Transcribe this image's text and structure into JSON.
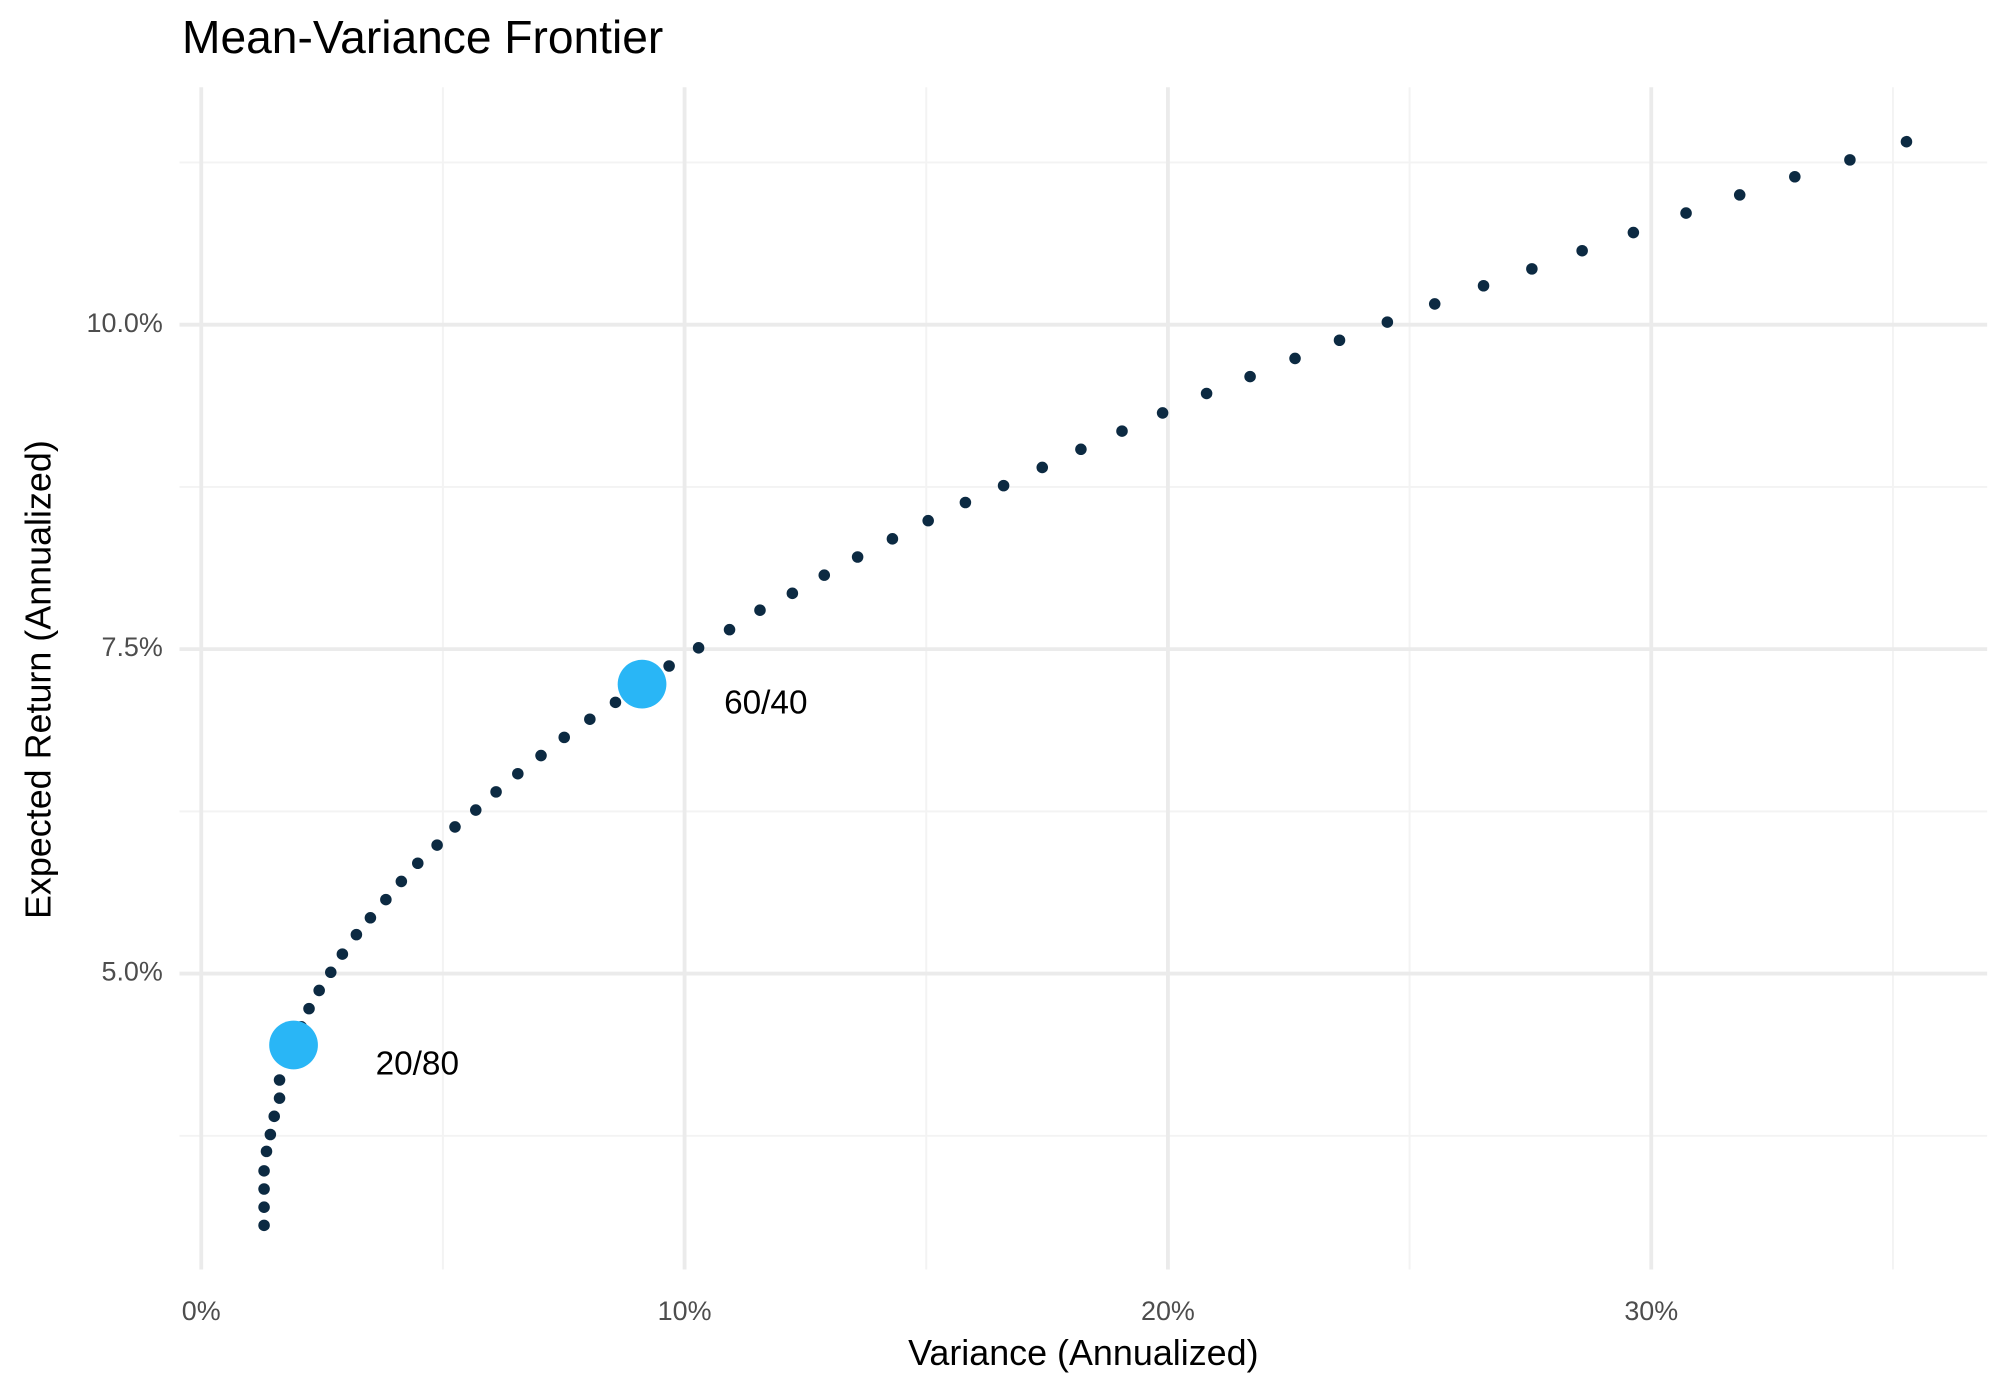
{
  "chart_data": {
    "type": "scatter",
    "title": "Mean-Variance Frontier",
    "x_label": "Variance (Annualized)",
    "y_label": "Expected Return (Annualized)",
    "x": [
      1.3,
      1.3,
      1.3,
      1.3,
      1.35,
      1.43,
      1.51,
      1.62,
      1.62,
      2.07,
      2.23,
      2.44,
      2.68,
      2.92,
      3.21,
      3.5,
      3.82,
      4.14,
      4.48,
      4.88,
      5.25,
      5.68,
      6.1,
      6.55,
      7.03,
      7.51,
      8.04,
      8.57,
      9.68,
      10.29,
      10.93,
      11.56,
      12.23,
      12.89,
      13.58,
      14.3,
      15.04,
      15.81,
      16.6,
      17.4,
      18.2,
      19.05,
      19.89,
      20.8,
      21.7,
      22.63,
      23.55,
      24.54,
      25.52,
      26.53,
      27.53,
      28.57,
      29.63,
      30.72,
      31.83,
      32.97,
      34.11,
      35.28
    ],
    "y": [
      3.06,
      3.2,
      3.34,
      3.48,
      3.63,
      3.76,
      3.9,
      4.04,
      4.18,
      4.59,
      4.73,
      4.87,
      5.01,
      5.15,
      5.3,
      5.43,
      5.57,
      5.71,
      5.85,
      5.99,
      6.13,
      6.26,
      6.4,
      6.54,
      6.68,
      6.82,
      6.96,
      7.09,
      7.37,
      7.51,
      7.65,
      7.8,
      7.93,
      8.07,
      8.21,
      8.35,
      8.49,
      8.63,
      8.76,
      8.9,
      9.04,
      9.18,
      9.32,
      9.47,
      9.6,
      9.74,
      9.88,
      10.02,
      10.16,
      10.3,
      10.43,
      10.57,
      10.71,
      10.86,
      11.0,
      11.14,
      11.27,
      11.41
    ],
    "color": "#0c2a42",
    "annotations": [
      {
        "label": "20/80",
        "x": 1.91,
        "y": 4.45
      },
      {
        "label": "60/40",
        "x": 9.12,
        "y": 7.23
      }
    ],
    "highlight_color": "#29b6f6",
    "xlim": [
      -0.45,
      36.95
    ],
    "ylim": [
      2.72,
      11.83
    ],
    "xticks": [
      {
        "value": 0,
        "label": "0%"
      },
      {
        "value": 10,
        "label": "10%"
      },
      {
        "value": 20,
        "label": "20%"
      },
      {
        "value": 30,
        "label": "30%"
      }
    ],
    "yticks": [
      {
        "value": 5,
        "label": "5.0%"
      },
      {
        "value": 7.5,
        "label": "7.5%"
      },
      {
        "value": 10,
        "label": "10.0%"
      }
    ],
    "x_minor": [
      5,
      15,
      25,
      35
    ],
    "y_minor": [
      3.75,
      6.25,
      8.75,
      11.25
    ],
    "grid": true
  }
}
